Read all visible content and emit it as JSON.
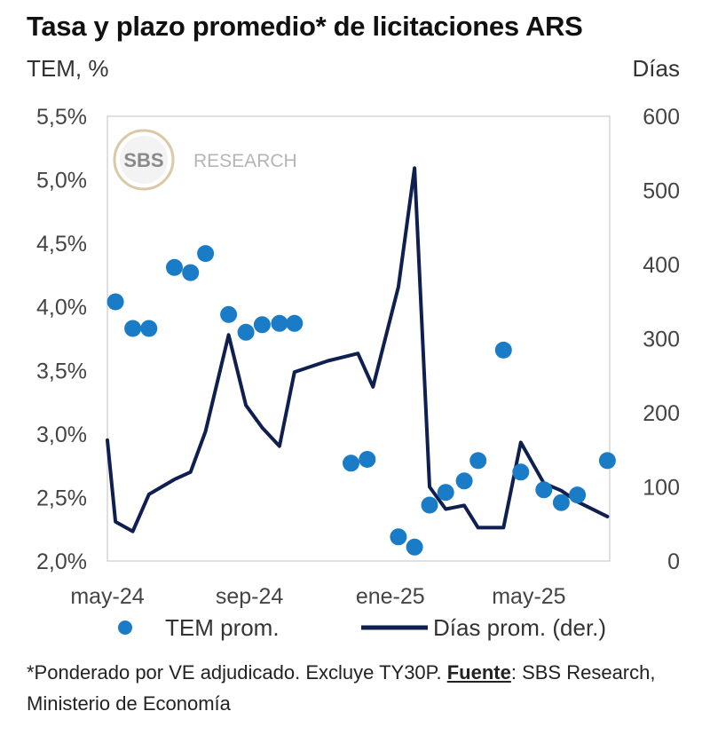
{
  "title": "Tasa y plazo promedio* de licitaciones ARS",
  "colors": {
    "dots": "#1a7cc6",
    "line": "#0f1f4f",
    "axes": "#cccccc"
  },
  "footnote": {
    "text_before": "*Ponderado por VE adjudicado. Excluye TY30P. ",
    "source_label": "Fuente",
    "text_after": ": SBS Research, Ministerio de Economía"
  },
  "watermark": {
    "logo_text": "SBS",
    "text": "RESEARCH"
  },
  "chart_data": {
    "type": "scatter+line",
    "left_axis": {
      "label": "TEM, %",
      "range": [
        2.0,
        5.5
      ],
      "ticks": [
        "5,5%",
        "5,0%",
        "4,5%",
        "4,0%",
        "3,5%",
        "3,0%",
        "2,5%",
        "2,0%"
      ],
      "tick_values": [
        5.5,
        5.0,
        4.5,
        4.0,
        3.5,
        3.0,
        2.5,
        2.0
      ]
    },
    "right_axis": {
      "label": "Días",
      "range": [
        0,
        600
      ],
      "ticks": [
        "600",
        "500",
        "400",
        "300",
        "200",
        "100",
        "0"
      ],
      "tick_values": [
        600,
        500,
        400,
        300,
        200,
        100,
        0
      ]
    },
    "x_axis": {
      "range": [
        "2024-05-01",
        "2025-07-10"
      ],
      "tick_labels": [
        "may-24",
        "sep-24",
        "ene-25",
        "may-25"
      ],
      "tick_dates": [
        "2024-05-01",
        "2024-09-01",
        "2025-01-01",
        "2025-05-01"
      ]
    },
    "legend": [
      "TEM prom.",
      "Días prom. (der.)"
    ],
    "series": [
      {
        "name": "TEM prom.",
        "type": "scatter",
        "axis": "left",
        "points": [
          [
            "2024-05-08",
            4.04
          ],
          [
            "2024-05-23",
            3.83
          ],
          [
            "2024-06-06",
            3.83
          ],
          [
            "2024-06-28",
            4.31
          ],
          [
            "2024-07-12",
            4.27
          ],
          [
            "2024-07-25",
            4.42
          ],
          [
            "2024-08-14",
            3.94
          ],
          [
            "2024-08-29",
            3.8
          ],
          [
            "2024-09-12",
            3.86
          ],
          [
            "2024-09-27",
            3.87
          ],
          [
            "2024-10-10",
            3.87
          ],
          [
            "2024-11-28",
            2.77
          ],
          [
            "2024-12-12",
            2.8
          ],
          [
            "2025-01-08",
            2.19
          ],
          [
            "2025-01-22",
            2.11
          ],
          [
            "2025-02-04",
            2.44
          ],
          [
            "2025-02-18",
            2.54
          ],
          [
            "2025-03-06",
            2.63
          ],
          [
            "2025-03-18",
            2.79
          ],
          [
            "2025-04-09",
            3.66
          ],
          [
            "2025-04-24",
            2.7
          ],
          [
            "2025-05-14",
            2.56
          ],
          [
            "2025-05-29",
            2.46
          ],
          [
            "2025-06-12",
            2.52
          ],
          [
            "2025-07-08",
            2.79
          ]
        ]
      },
      {
        "name": "Días prom. (der.)",
        "type": "line",
        "axis": "right",
        "points": [
          [
            "2024-05-01",
            163
          ],
          [
            "2024-05-08",
            53
          ],
          [
            "2024-05-23",
            40
          ],
          [
            "2024-06-06",
            90
          ],
          [
            "2024-06-28",
            110
          ],
          [
            "2024-07-12",
            120
          ],
          [
            "2024-07-25",
            175
          ],
          [
            "2024-08-14",
            305
          ],
          [
            "2024-08-29",
            210
          ],
          [
            "2024-09-12",
            180
          ],
          [
            "2024-09-27",
            155
          ],
          [
            "2024-10-10",
            255
          ],
          [
            "2024-11-08",
            270
          ],
          [
            "2024-12-04",
            280
          ],
          [
            "2024-12-17",
            235
          ],
          [
            "2025-01-08",
            370
          ],
          [
            "2025-01-22",
            530
          ],
          [
            "2025-02-04",
            100
          ],
          [
            "2025-02-18",
            70
          ],
          [
            "2025-03-06",
            75
          ],
          [
            "2025-03-18",
            45
          ],
          [
            "2025-04-03",
            45
          ],
          [
            "2025-04-09",
            45
          ],
          [
            "2025-04-24",
            160
          ],
          [
            "2025-05-14",
            105
          ],
          [
            "2025-05-29",
            95
          ],
          [
            "2025-06-12",
            80
          ],
          [
            "2025-07-08",
            60
          ]
        ]
      }
    ]
  }
}
